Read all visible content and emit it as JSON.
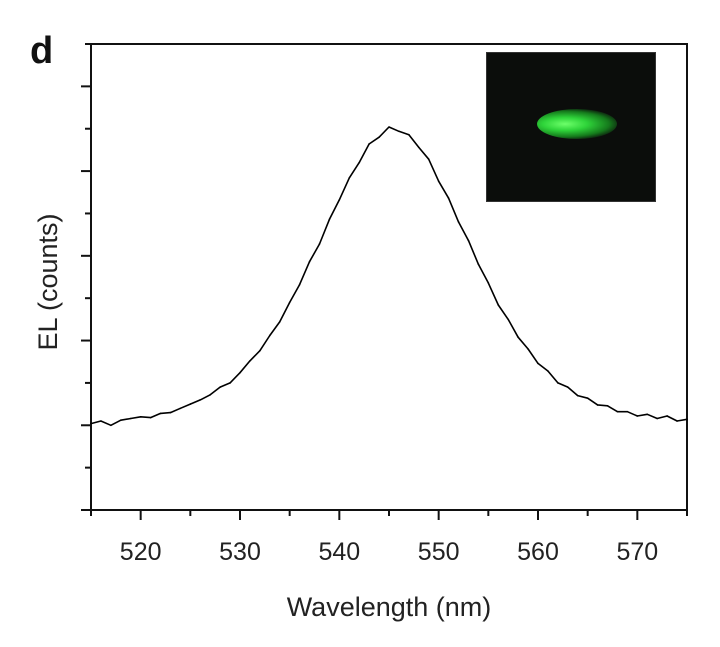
{
  "panel_label": "d",
  "chart_data": {
    "type": "line",
    "title": "",
    "xlabel": "Wavelength (nm)",
    "ylabel": "EL (counts)",
    "xlim": [
      515,
      575
    ],
    "ylim": [
      0,
      5.5
    ],
    "x_ticks": [
      520,
      530,
      540,
      550,
      560,
      570
    ],
    "x_tick_labels": [
      "520",
      "530",
      "540",
      "550",
      "560",
      "570"
    ],
    "y_tick_labels_shown": false,
    "grid": false,
    "line_color": "#000000",
    "inset": "dark micrograph with green emission spot",
    "inset_colors": {
      "background": "#0b0d0b",
      "emission": "#3fe03f"
    },
    "x": [
      515,
      516,
      517,
      518,
      519,
      520,
      521,
      522,
      523,
      524,
      525,
      526,
      527,
      528,
      529,
      530,
      531,
      532,
      533,
      534,
      535,
      536,
      537,
      538,
      539,
      540,
      541,
      542,
      543,
      544,
      545,
      546,
      547,
      548,
      549,
      550,
      551,
      552,
      553,
      554,
      555,
      556,
      557,
      558,
      559,
      560,
      561,
      562,
      563,
      564,
      565,
      566,
      567,
      568,
      569,
      570,
      571,
      572,
      573,
      574,
      575
    ],
    "y": [
      1.02,
      1.05,
      1.0,
      1.06,
      1.08,
      1.1,
      1.09,
      1.14,
      1.15,
      1.2,
      1.25,
      1.3,
      1.36,
      1.45,
      1.5,
      1.62,
      1.76,
      1.88,
      2.06,
      2.22,
      2.45,
      2.66,
      2.93,
      3.14,
      3.43,
      3.66,
      3.92,
      4.1,
      4.32,
      4.4,
      4.52,
      4.47,
      4.43,
      4.28,
      4.14,
      3.88,
      3.68,
      3.4,
      3.18,
      2.9,
      2.68,
      2.42,
      2.25,
      2.04,
      1.9,
      1.73,
      1.64,
      1.5,
      1.45,
      1.35,
      1.32,
      1.24,
      1.23,
      1.16,
      1.16,
      1.11,
      1.13,
      1.08,
      1.11,
      1.05,
      1.07
    ]
  }
}
